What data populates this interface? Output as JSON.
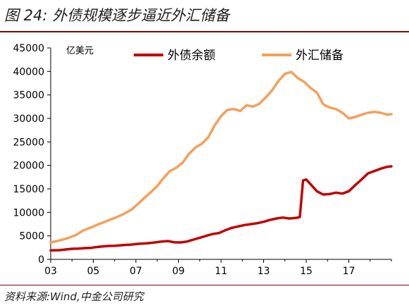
{
  "header": {
    "title": "图 24:  外债规模逐步逼近外汇储备"
  },
  "footer": {
    "source": "资料来源:Wind,中金公司研究"
  },
  "chart_data": {
    "type": "line",
    "ylabel": "亿美元",
    "ylim": [
      0,
      45000
    ],
    "yticks": [
      0,
      5000,
      10000,
      15000,
      20000,
      25000,
      30000,
      35000,
      40000,
      45000
    ],
    "xlim": [
      2003,
      2019
    ],
    "xticks": [
      2003,
      2005,
      2007,
      2009,
      2011,
      2013,
      2015,
      2017
    ],
    "xtick_labels": [
      "03",
      "05",
      "07",
      "09",
      "11",
      "13",
      "15",
      "17"
    ],
    "legend_position": "top",
    "grid": false,
    "series": [
      {
        "name": "外债余额",
        "color": "#c00000",
        "points": [
          [
            2003.0,
            1900
          ],
          [
            2003.4,
            1950
          ],
          [
            2003.7,
            2100
          ],
          [
            2004.0,
            2250
          ],
          [
            2004.3,
            2300
          ],
          [
            2004.6,
            2400
          ],
          [
            2004.9,
            2450
          ],
          [
            2005.1,
            2600
          ],
          [
            2005.4,
            2750
          ],
          [
            2005.7,
            2850
          ],
          [
            2006.0,
            2900
          ],
          [
            2006.4,
            3050
          ],
          [
            2006.8,
            3150
          ],
          [
            2007.1,
            3300
          ],
          [
            2007.5,
            3400
          ],
          [
            2007.9,
            3600
          ],
          [
            2008.2,
            3800
          ],
          [
            2008.5,
            3900
          ],
          [
            2008.8,
            3650
          ],
          [
            2009.1,
            3600
          ],
          [
            2009.4,
            3800
          ],
          [
            2009.7,
            4200
          ],
          [
            2010.0,
            4600
          ],
          [
            2010.3,
            5000
          ],
          [
            2010.6,
            5400
          ],
          [
            2010.9,
            5600
          ],
          [
            2011.2,
            6200
          ],
          [
            2011.5,
            6700
          ],
          [
            2011.8,
            7000
          ],
          [
            2012.1,
            7300
          ],
          [
            2012.4,
            7500
          ],
          [
            2012.7,
            7700
          ],
          [
            2013.0,
            8000
          ],
          [
            2013.3,
            8400
          ],
          [
            2013.6,
            8700
          ],
          [
            2013.9,
            8900
          ],
          [
            2014.2,
            8700
          ],
          [
            2014.5,
            8800
          ],
          [
            2014.7,
            9000
          ],
          [
            2014.85,
            16800
          ],
          [
            2015.0,
            17000
          ],
          [
            2015.2,
            16000
          ],
          [
            2015.5,
            14500
          ],
          [
            2015.8,
            13800
          ],
          [
            2016.1,
            13900
          ],
          [
            2016.4,
            14200
          ],
          [
            2016.7,
            14000
          ],
          [
            2017.0,
            14500
          ],
          [
            2017.3,
            15800
          ],
          [
            2017.6,
            17000
          ],
          [
            2017.9,
            18300
          ],
          [
            2018.2,
            18800
          ],
          [
            2018.5,
            19300
          ],
          [
            2018.8,
            19700
          ],
          [
            2019.0,
            19800
          ]
        ]
      },
      {
        "name": "外汇储备",
        "color": "#f4a05a",
        "points": [
          [
            2003.0,
            3600
          ],
          [
            2003.4,
            4000
          ],
          [
            2003.8,
            4500
          ],
          [
            2004.2,
            5200
          ],
          [
            2004.5,
            6100
          ],
          [
            2004.9,
            6800
          ],
          [
            2005.2,
            7400
          ],
          [
            2005.6,
            8100
          ],
          [
            2006.0,
            8800
          ],
          [
            2006.4,
            9600
          ],
          [
            2006.8,
            10600
          ],
          [
            2007.1,
            11800
          ],
          [
            2007.4,
            13100
          ],
          [
            2007.7,
            14300
          ],
          [
            2008.0,
            15600
          ],
          [
            2008.3,
            17300
          ],
          [
            2008.6,
            18800
          ],
          [
            2008.9,
            19500
          ],
          [
            2009.2,
            20600
          ],
          [
            2009.5,
            22500
          ],
          [
            2009.8,
            23800
          ],
          [
            2010.1,
            24600
          ],
          [
            2010.4,
            26000
          ],
          [
            2010.7,
            28500
          ],
          [
            2011.0,
            30500
          ],
          [
            2011.3,
            31800
          ],
          [
            2011.6,
            32000
          ],
          [
            2011.9,
            31600
          ],
          [
            2012.2,
            32800
          ],
          [
            2012.5,
            32500
          ],
          [
            2012.8,
            33100
          ],
          [
            2013.1,
            34500
          ],
          [
            2013.4,
            36000
          ],
          [
            2013.7,
            38000
          ],
          [
            2014.0,
            39500
          ],
          [
            2014.3,
            39900
          ],
          [
            2014.6,
            38600
          ],
          [
            2014.9,
            37800
          ],
          [
            2015.2,
            36500
          ],
          [
            2015.5,
            35500
          ],
          [
            2015.8,
            33000
          ],
          [
            2016.1,
            32300
          ],
          [
            2016.4,
            32000
          ],
          [
            2016.7,
            31200
          ],
          [
            2017.0,
            30000
          ],
          [
            2017.3,
            30300
          ],
          [
            2017.6,
            30800
          ],
          [
            2017.9,
            31200
          ],
          [
            2018.2,
            31400
          ],
          [
            2018.5,
            31200
          ],
          [
            2018.8,
            30800
          ],
          [
            2019.0,
            30900
          ]
        ]
      }
    ]
  }
}
